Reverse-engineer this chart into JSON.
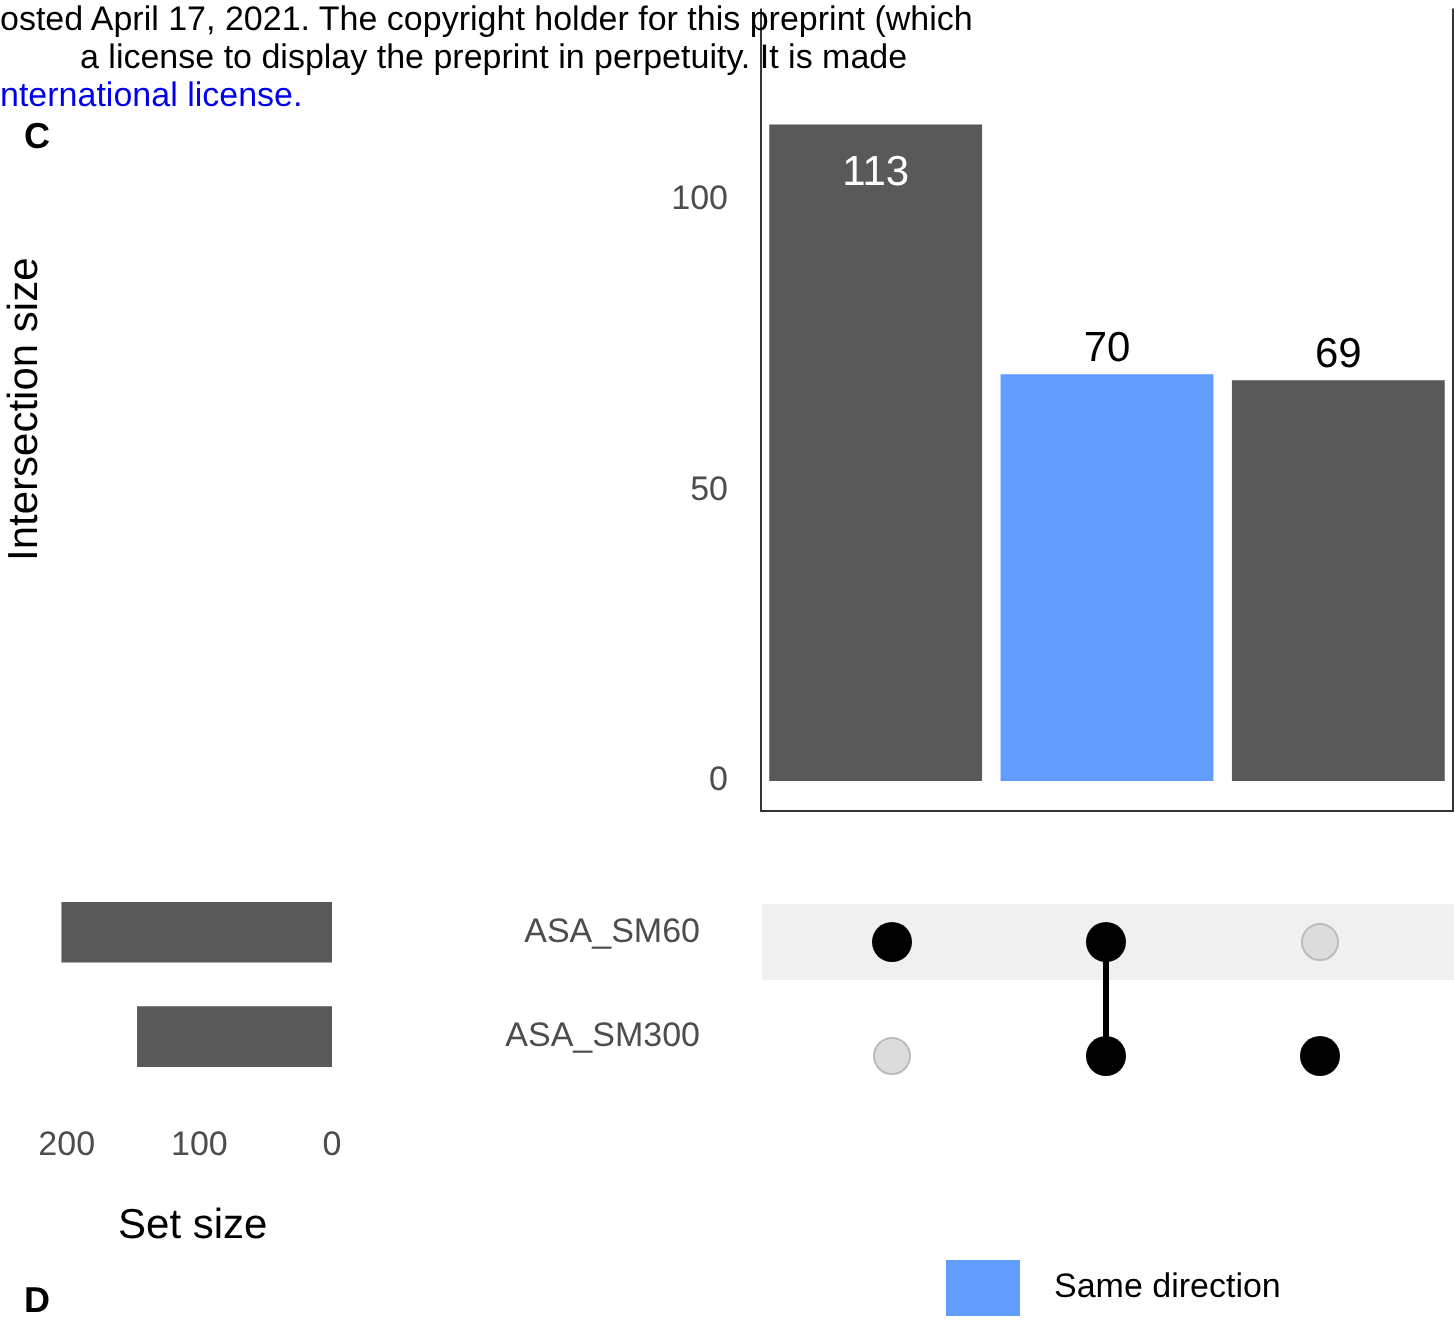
{
  "chart_data": [
    {
      "type": "bar",
      "ylabel": "Intersection size",
      "categories": [
        null,
        null,
        null
      ],
      "series": [
        {
          "name": "Same direction",
          "color": "#619cff",
          "values": [
            null,
            70,
            null
          ]
        },
        {
          "color": "#595959",
          "values": [
            113,
            null,
            69
          ]
        }
      ],
      "ylim": [
        -5,
        133
      ],
      "yticks": [
        0,
        50,
        100
      ],
      "grid": false,
      "data_labels": true,
      "legend": "bottom",
      "annotations": [
        "osted April 17, 2021. The copyright holder for this preprint (which",
        "a license to display the preprint in perpetuity. It is made",
        "nternational license.",
        "C",
        "D"
      ]
    },
    {
      "type": "bar",
      "orientation": "horizontal",
      "categories": [
        "ASA_SM60",
        "ASA_SM300"
      ],
      "values": [
        204,
        147
      ],
      "color": "#595959",
      "xlim": [
        210,
        0
      ],
      "xticks": [
        200,
        100,
        0
      ],
      "xlabel": "Set size",
      "grid": false,
      "legend": false
    }
  ]
}
